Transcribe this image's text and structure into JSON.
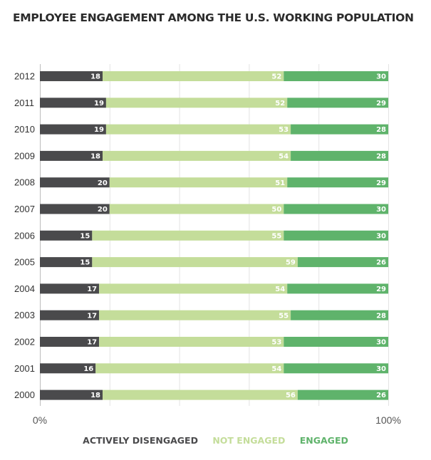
{
  "chart_data": {
    "type": "bar",
    "stacked": true,
    "orientation": "horizontal",
    "title": "EMPLOYEE ENGAGEMENT AMONG THE U.S. WORKING POPULATION",
    "categories": [
      "2012",
      "2011",
      "2010",
      "2009",
      "2008",
      "2007",
      "2006",
      "2005",
      "2004",
      "2003",
      "2002",
      "2001",
      "2000"
    ],
    "series": [
      {
        "name": "ACTIVELY DISENGAGED",
        "color": "#4a4a4c",
        "values": [
          18,
          19,
          19,
          18,
          20,
          20,
          15,
          15,
          17,
          17,
          17,
          16,
          18
        ]
      },
      {
        "name": "NOT ENGAGED",
        "color": "#c4dd9a",
        "values": [
          52,
          52,
          53,
          54,
          51,
          50,
          55,
          59,
          54,
          55,
          53,
          54,
          56
        ]
      },
      {
        "name": "ENGAGED",
        "color": "#5fb36b",
        "values": [
          30,
          29,
          28,
          28,
          29,
          30,
          30,
          26,
          29,
          28,
          30,
          30,
          26
        ]
      }
    ],
    "x_ticks": [
      "0%",
      "100%"
    ],
    "xlim": [
      0,
      100
    ],
    "grid": true
  }
}
